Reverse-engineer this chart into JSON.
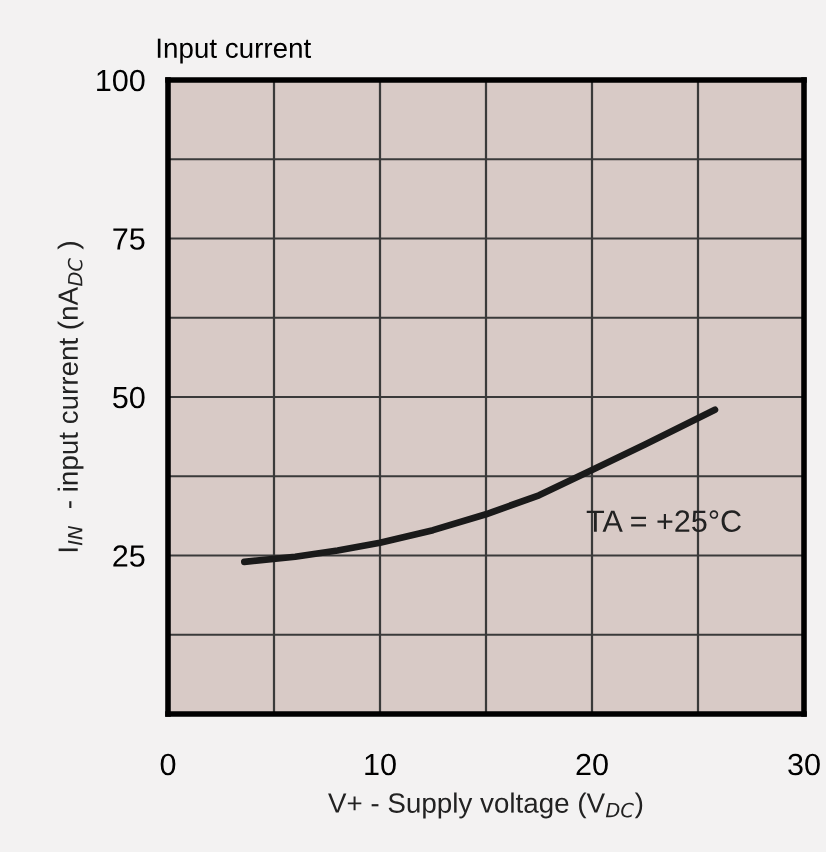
{
  "chart_data": {
    "type": "line",
    "title": "Input current",
    "xlabel": "V+ - Supply voltage (V$_{DC}$)",
    "ylabel": "I$_{IN}$  - input current (nA$_{DC}$ )",
    "x": [
      3.6,
      6,
      8,
      10,
      12.5,
      15,
      17.5,
      20,
      22.5,
      25.8
    ],
    "series": [
      {
        "color": "#1a1a1a",
        "values": [
          24,
          24.8,
          25.8,
          27,
          29,
          31.5,
          34.5,
          38.5,
          42.5,
          48
        ]
      }
    ],
    "xlim": [
      0,
      30
    ],
    "xticks": [
      0,
      {
        "value": 5,
        "label": null
      },
      10,
      {
        "value": 15,
        "label": null
      },
      20,
      {
        "value": 25,
        "label": null
      },
      30
    ],
    "ylim": [
      0,
      100
    ],
    "yticks": [
      {
        "value": 12.5,
        "label": null
      },
      25,
      {
        "value": 37.5,
        "label": null
      },
      50,
      {
        "value": 62.5,
        "label": null
      },
      75,
      {
        "value": 87.5,
        "label": null
      },
      100
    ],
    "grid": true,
    "marker": "none",
    "line_style": "solid",
    "annotations": [
      "TA = +25°C"
    ]
  }
}
